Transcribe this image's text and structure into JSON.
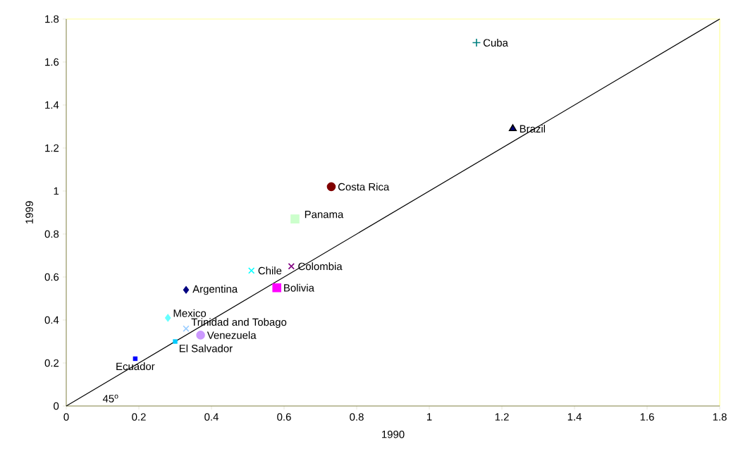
{
  "chart_data": {
    "type": "scatter",
    "xlabel": "1990",
    "ylabel": "1999",
    "xlim": [
      0,
      1.8
    ],
    "ylim": [
      0,
      1.8
    ],
    "xticks": [
      0,
      0.2,
      0.4,
      0.6,
      0.8,
      1,
      1.2,
      1.4,
      1.6,
      1.8
    ],
    "yticks": [
      0,
      0.2,
      0.4,
      0.6,
      0.8,
      1,
      1.2,
      1.4,
      1.6,
      1.8
    ],
    "grid": false,
    "annotations": [
      "45$^{o}$"
    ],
    "series": [
      {
        "name": "Ecuador",
        "color": "#0000ff",
        "marker": "square",
        "x": [
          0.19
        ],
        "values": [
          0.22
        ]
      },
      {
        "name": "El Salvador",
        "color": "#00ccff",
        "marker": "square",
        "x": [
          0.3
        ],
        "values": [
          0.3
        ]
      },
      {
        "name": "Venezuela",
        "color": "#cc99ff",
        "marker": "circle",
        "x": [
          0.37
        ],
        "values": [
          0.33
        ]
      },
      {
        "name": "Trinidad and Tobago",
        "color": "#99ccff",
        "marker": "cross",
        "x": [
          0.33
        ],
        "values": [
          0.36
        ]
      },
      {
        "name": "Mexico",
        "color": "#66ffff",
        "marker": "diamond",
        "x": [
          0.28
        ],
        "values": [
          0.41
        ]
      },
      {
        "name": "Argentina",
        "color": "#000080",
        "marker": "diamond",
        "x": [
          0.33
        ],
        "values": [
          0.54
        ]
      },
      {
        "name": "Bolivia",
        "color": "#ff00ff",
        "marker": "square",
        "x": [
          0.58
        ],
        "values": [
          0.55
        ]
      },
      {
        "name": "Chile",
        "color": "#00ffff",
        "marker": "cross",
        "x": [
          0.51
        ],
        "values": [
          0.63
        ]
      },
      {
        "name": "Colombia",
        "color": "#800080",
        "marker": "cross",
        "x": [
          0.62
        ],
        "values": [
          0.65
        ]
      },
      {
        "name": "Panama",
        "color": "#ccffcc",
        "marker": "square",
        "x": [
          0.63
        ],
        "values": [
          0.87
        ]
      },
      {
        "name": "Costa Rica",
        "color": "#800000",
        "marker": "circle",
        "x": [
          0.73
        ],
        "values": [
          1.02
        ]
      },
      {
        "name": "Brazil",
        "color": "#000080",
        "marker": "triangle",
        "x": [
          1.23
        ],
        "values": [
          1.29
        ]
      },
      {
        "name": "Cuba",
        "color": "#008080",
        "marker": "plus",
        "x": [
          1.13
        ],
        "values": [
          1.69
        ]
      },
      {
        "type": "line",
        "color": "#000000",
        "marker": "none",
        "line_style": "solid",
        "x": [
          0,
          1.8
        ],
        "values": [
          0,
          1.8
        ]
      }
    ]
  }
}
